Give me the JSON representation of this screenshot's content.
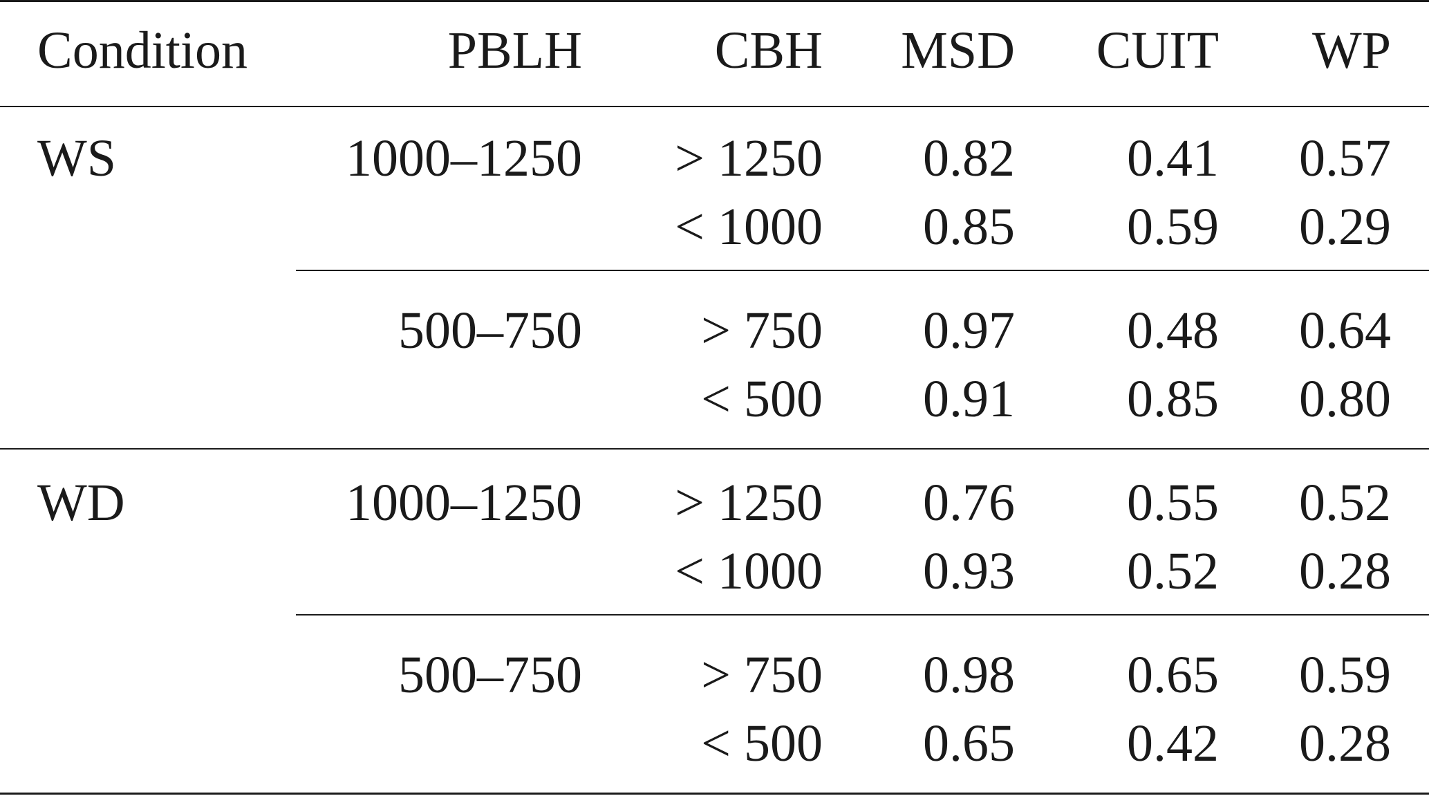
{
  "columns": {
    "condition": "Condition",
    "pblh": "PBLH",
    "cbh": "CBH",
    "msd": "MSD",
    "cuit": "CUIT",
    "wp": "WP"
  },
  "groups": [
    {
      "condition": "WS",
      "blocks": [
        {
          "pblh": "1000–1250",
          "rows": [
            {
              "cbh": "> 1250",
              "msd": "0.82",
              "cuit": "0.41",
              "wp": "0.57"
            },
            {
              "cbh": "< 1000",
              "msd": "0.85",
              "cuit": "0.59",
              "wp": "0.29"
            }
          ]
        },
        {
          "pblh": "500–750",
          "rows": [
            {
              "cbh": "> 750",
              "msd": "0.97",
              "cuit": "0.48",
              "wp": "0.64"
            },
            {
              "cbh": "< 500",
              "msd": "0.91",
              "cuit": "0.85",
              "wp": "0.80"
            }
          ]
        }
      ]
    },
    {
      "condition": "WD",
      "blocks": [
        {
          "pblh": "1000–1250",
          "rows": [
            {
              "cbh": "> 1250",
              "msd": "0.76",
              "cuit": "0.55",
              "wp": "0.52"
            },
            {
              "cbh": "< 1000",
              "msd": "0.93",
              "cuit": "0.52",
              "wp": "0.28"
            }
          ]
        },
        {
          "pblh": "500–750",
          "rows": [
            {
              "cbh": "> 750",
              "msd": "0.98",
              "cuit": "0.65",
              "wp": "0.59"
            },
            {
              "cbh": "< 500",
              "msd": "0.65",
              "cuit": "0.42",
              "wp": "0.28"
            }
          ]
        }
      ]
    }
  ]
}
